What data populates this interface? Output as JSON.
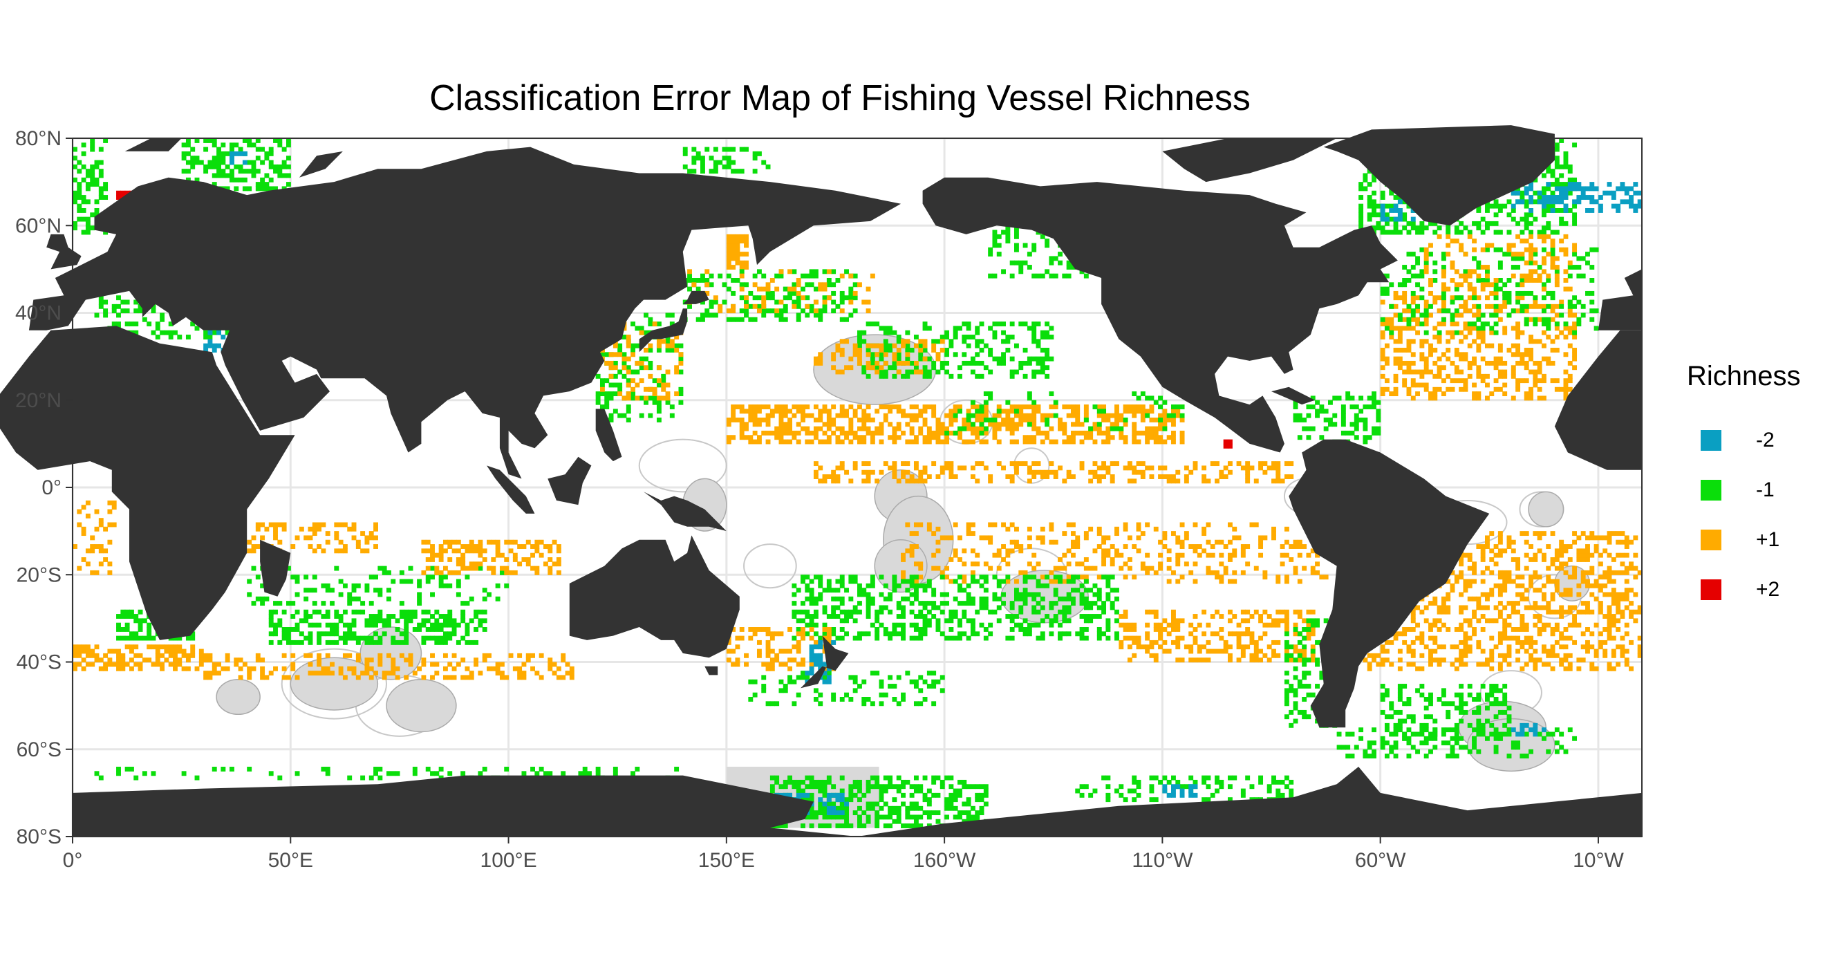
{
  "title": "Classification Error Map of Fishing Vessel Richness",
  "legend": {
    "title": "Richness",
    "items": [
      {
        "label": "-2",
        "color": "#0a9fc2",
        "value": -2
      },
      {
        "label": "-1",
        "color": "#0ade0a",
        "value": -1
      },
      {
        "label": "+1",
        "color": "#ffab00",
        "value": 1
      },
      {
        "label": "+2",
        "color": "#e50000",
        "value": 2
      }
    ]
  },
  "colors": {
    "land": "#333333",
    "ocean": "#ffffff",
    "grid": "#e6e6e6",
    "mpa_fill": "#d9d9d9",
    "eez_line": "#c8c8c8"
  },
  "axes": {
    "x_ticks": [
      "0°",
      "50°E",
      "100°E",
      "150°E",
      "160°W",
      "110°W",
      "60°W",
      "10°W"
    ],
    "x_tick_lons": [
      0,
      50,
      100,
      150,
      200,
      250,
      300,
      350
    ],
    "y_ticks": [
      "80°N",
      "60°N",
      "40°N",
      "20°N",
      "0°",
      "20°S",
      "40°S",
      "60°S",
      "80°S"
    ],
    "y_tick_lats": [
      80,
      60,
      40,
      20,
      0,
      -20,
      -40,
      -60,
      -80
    ],
    "lon_range": [
      0,
      360
    ],
    "lat_range": [
      -80,
      80
    ]
  },
  "chart_data": {
    "type": "heatmap",
    "projection": "equirectangular, 0-360 longitude (Pacific-centred)",
    "cell_size_deg": 1,
    "legend_values": [
      -2,
      -1,
      1,
      2
    ],
    "regions": [
      {
        "value": -1,
        "lon": [
          10,
          28
        ],
        "lat": [
          -35,
          -28
        ],
        "density": 0.55
      },
      {
        "value": -1,
        "lon": [
          45,
          95
        ],
        "lat": [
          -36,
          -28
        ],
        "density": 0.5
      },
      {
        "value": -1,
        "lon": [
          40,
          100
        ],
        "lat": [
          -27,
          -18
        ],
        "density": 0.2
      },
      {
        "value": 1,
        "lon": [
          0,
          30
        ],
        "lat": [
          -42,
          -36
        ],
        "density": 0.5
      },
      {
        "value": 1,
        "lon": [
          30,
          115
        ],
        "lat": [
          -44,
          -38
        ],
        "density": 0.3
      },
      {
        "value": 1,
        "lon": [
          80,
          112
        ],
        "lat": [
          -20,
          -12
        ],
        "density": 0.45
      },
      {
        "value": 1,
        "lon": [
          40,
          70
        ],
        "lat": [
          -15,
          -8
        ],
        "density": 0.3
      },
      {
        "value": 1,
        "lon": [
          0,
          10
        ],
        "lat": [
          -20,
          -2
        ],
        "density": 0.25
      },
      {
        "value": -1,
        "lon": [
          0,
          8
        ],
        "lat": [
          58,
          80
        ],
        "density": 0.35
      },
      {
        "value": -1,
        "lon": [
          25,
          50
        ],
        "lat": [
          68,
          80
        ],
        "density": 0.4
      },
      {
        "value": -1,
        "lon": [
          140,
          160
        ],
        "lat": [
          72,
          78
        ],
        "density": 0.3
      },
      {
        "value": -1,
        "lon": [
          5,
          36
        ],
        "lat": [
          34,
          44
        ],
        "density": 0.35
      },
      {
        "value": -1,
        "lon": [
          120,
          140
        ],
        "lat": [
          15,
          40
        ],
        "density": 0.25
      },
      {
        "value": 1,
        "lon": [
          120,
          140
        ],
        "lat": [
          20,
          38
        ],
        "density": 0.2
      },
      {
        "value": 1,
        "lon": [
          150,
          155
        ],
        "lat": [
          50,
          58
        ],
        "density": 0.7
      },
      {
        "value": -1,
        "lon": [
          140,
          180
        ],
        "lat": [
          38,
          50
        ],
        "density": 0.3
      },
      {
        "value": 1,
        "lon": [
          140,
          185
        ],
        "lat": [
          40,
          50
        ],
        "density": 0.2
      },
      {
        "value": -1,
        "lon": [
          180,
          225
        ],
        "lat": [
          25,
          38
        ],
        "density": 0.35
      },
      {
        "value": 1,
        "lon": [
          170,
          200
        ],
        "lat": [
          26,
          34
        ],
        "density": 0.25
      },
      {
        "value": 1,
        "lon": [
          150,
          255
        ],
        "lat": [
          10,
          19
        ],
        "density": 0.55
      },
      {
        "value": -1,
        "lon": [
          200,
          255
        ],
        "lat": [
          12,
          22
        ],
        "density": 0.12
      },
      {
        "value": 1,
        "lon": [
          170,
          280
        ],
        "lat": [
          1,
          6
        ],
        "density": 0.35
      },
      {
        "value": 1,
        "lon": [
          190,
          290
        ],
        "lat": [
          -22,
          -8
        ],
        "density": 0.22
      },
      {
        "value": -1,
        "lon": [
          165,
          240
        ],
        "lat": [
          -35,
          -20
        ],
        "density": 0.4
      },
      {
        "value": 1,
        "lon": [
          150,
          175
        ],
        "lat": [
          -42,
          -32
        ],
        "density": 0.35
      },
      {
        "value": -1,
        "lon": [
          155,
          200
        ],
        "lat": [
          -50,
          -42
        ],
        "density": 0.2
      },
      {
        "value": 1,
        "lon": [
          240,
          285
        ],
        "lat": [
          -40,
          -28
        ],
        "density": 0.35
      },
      {
        "value": -1,
        "lon": [
          278,
          290
        ],
        "lat": [
          -55,
          -30
        ],
        "density": 0.3
      },
      {
        "value": 1,
        "lon": [
          295,
          360
        ],
        "lat": [
          -42,
          -10
        ],
        "density": 0.35
      },
      {
        "value": -1,
        "lon": [
          300,
          330
        ],
        "lat": [
          -58,
          -45
        ],
        "density": 0.3
      },
      {
        "value": -1,
        "lon": [
          290,
          345
        ],
        "lat": [
          -62,
          -55
        ],
        "density": 0.25
      },
      {
        "value": -1,
        "lon": [
          160,
          210
        ],
        "lat": [
          -78,
          -66
        ],
        "density": 0.5
      },
      {
        "value": -1,
        "lon": [
          0,
          140
        ],
        "lat": [
          -67,
          -64
        ],
        "density": 0.18
      },
      {
        "value": -1,
        "lon": [
          230,
          280
        ],
        "lat": [
          -72,
          -66
        ],
        "density": 0.3
      },
      {
        "value": 1,
        "lon": [
          300,
          345
        ],
        "lat": [
          20,
          45
        ],
        "density": 0.35
      },
      {
        "value": -1,
        "lon": [
          300,
          350
        ],
        "lat": [
          35,
          55
        ],
        "density": 0.2
      },
      {
        "value": -1,
        "lon": [
          280,
          300
        ],
        "lat": [
          10,
          22
        ],
        "density": 0.3
      },
      {
        "value": -1,
        "lon": [
          295,
          345
        ],
        "lat": [
          58,
          80
        ],
        "density": 0.4
      },
      {
        "value": 1,
        "lon": [
          310,
          345
        ],
        "lat": [
          45,
          58
        ],
        "density": 0.25
      },
      {
        "value": -1,
        "lon": [
          210,
          245
        ],
        "lat": [
          48,
          60
        ],
        "density": 0.25
      }
    ],
    "highlights": [
      {
        "value": -2,
        "lon": [
          158,
          178
        ],
        "lat": [
          -75,
          -70
        ]
      },
      {
        "value": -2,
        "lon": [
          330,
          360
        ],
        "lat": [
          63,
          70
        ]
      },
      {
        "value": -2,
        "lon": [
          300,
          308
        ],
        "lat": [
          61,
          66
        ]
      },
      {
        "value": -2,
        "lon": [
          168,
          175
        ],
        "lat": [
          -45,
          -35
        ]
      },
      {
        "value": -2,
        "lon": [
          330,
          338
        ],
        "lat": [
          -57,
          -54
        ]
      },
      {
        "value": -2,
        "lon": [
          35,
          40
        ],
        "lat": [
          74,
          77
        ]
      },
      {
        "value": -2,
        "lon": [
          30,
          35
        ],
        "lat": [
          31,
          36
        ]
      },
      {
        "value": -2,
        "lon": [
          250,
          258
        ],
        "lat": [
          -71,
          -68
        ]
      },
      {
        "value": 2,
        "lon": [
          264,
          266
        ],
        "lat": [
          9,
          11
        ]
      },
      {
        "value": 2,
        "lon": [
          10,
          14
        ],
        "lat": [
          66,
          68
        ]
      }
    ]
  }
}
